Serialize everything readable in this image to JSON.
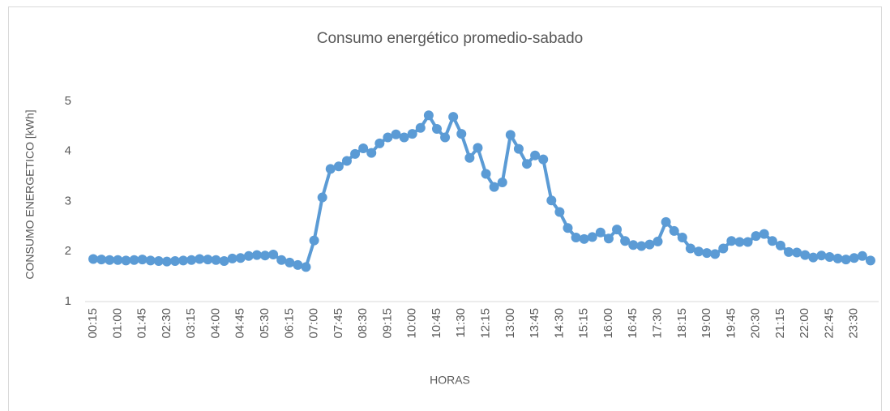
{
  "chart_data": {
    "type": "line",
    "title": "Consumo energético promedio-sabado",
    "x_label": "HORAS",
    "y_label": "CONSUMO ENERGETICO [kWh]",
    "categories": [
      "00:15",
      null,
      null,
      "01:00",
      null,
      null,
      "01:45",
      null,
      null,
      "02:30",
      null,
      null,
      "03:15",
      null,
      null,
      "04:00",
      null,
      null,
      "04:45",
      null,
      null,
      "05:30",
      null,
      null,
      "06:15",
      null,
      null,
      "07:00",
      null,
      null,
      "07:45",
      null,
      null,
      "08:30",
      null,
      null,
      "09:15",
      null,
      null,
      "10:00",
      null,
      null,
      "10:45",
      null,
      null,
      "11:30",
      null,
      null,
      "12:15",
      null,
      null,
      "13:00",
      null,
      null,
      "13:45",
      null,
      null,
      "14:30",
      null,
      null,
      "15:15",
      null,
      null,
      "16:00",
      null,
      null,
      "16:45",
      null,
      null,
      "17:30",
      null,
      null,
      "18:15",
      null,
      null,
      "19:00",
      null,
      null,
      "19:45",
      null,
      null,
      "20:30",
      null,
      null,
      "21:15",
      null,
      null,
      "22:00",
      null,
      null,
      "22:45",
      null,
      null,
      "23:30",
      null,
      null
    ],
    "values": [
      1.85,
      1.84,
      1.83,
      1.83,
      1.82,
      1.83,
      1.84,
      1.82,
      1.81,
      1.8,
      1.81,
      1.82,
      1.83,
      1.85,
      1.84,
      1.83,
      1.81,
      1.86,
      1.87,
      1.91,
      1.93,
      1.92,
      1.94,
      1.83,
      1.78,
      1.73,
      1.69,
      2.22,
      3.08,
      3.65,
      3.7,
      3.81,
      3.95,
      4.06,
      3.97,
      4.16,
      4.28,
      4.34,
      4.28,
      4.35,
      4.47,
      4.72,
      4.45,
      4.28,
      4.69,
      4.35,
      3.87,
      4.07,
      3.55,
      3.29,
      3.38,
      4.33,
      4.05,
      3.75,
      3.92,
      3.84,
      3.02,
      2.79,
      2.47,
      2.28,
      2.25,
      2.29,
      2.38,
      2.26,
      2.44,
      2.21,
      2.13,
      2.11,
      2.14,
      2.2,
      2.59,
      2.41,
      2.28,
      2.06,
      2.0,
      1.97,
      1.95,
      2.06,
      2.21,
      2.19,
      2.19,
      2.31,
      2.35,
      2.21,
      2.12,
      1.99,
      1.98,
      1.93,
      1.88,
      1.92,
      1.89,
      1.86,
      1.84,
      1.87,
      1.91,
      1.82
    ],
    "color": "#5b9bd5",
    "ylim": [
      1,
      5
    ],
    "yticks": [
      1,
      2,
      3,
      4,
      5
    ],
    "grid": false
  }
}
